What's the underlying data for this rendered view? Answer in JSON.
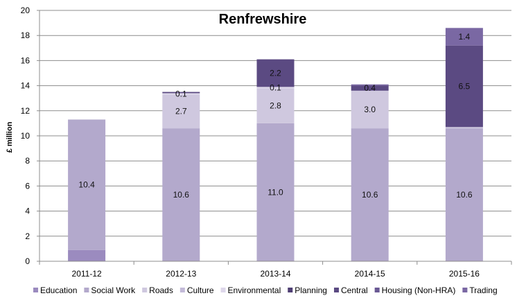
{
  "chart_data": {
    "type": "bar",
    "stacked": true,
    "title": "Renfrewshire",
    "ylabel": "£ million",
    "xlabel": "",
    "ylim": [
      0,
      20
    ],
    "ytick_step": 2,
    "grid": true,
    "legend_position": "bottom",
    "categories": [
      "2011-12",
      "2012-13",
      "2013-14",
      "2014-15",
      "2015-16"
    ],
    "series": [
      {
        "name": "Education",
        "color": "#9b8bbf",
        "values": [
          0.9,
          0,
          0,
          0,
          0
        ],
        "labels": [
          "",
          "",
          "",
          "",
          ""
        ]
      },
      {
        "name": "Social Work",
        "color": "#b3a9cc",
        "values": [
          10.4,
          10.6,
          11.0,
          10.6,
          10.6
        ],
        "labels": [
          "10.4",
          "10.6",
          "11.0",
          "10.6",
          "10.6"
        ]
      },
      {
        "name": "Roads",
        "color": "#cfc8df",
        "values": [
          0,
          2.7,
          2.8,
          3.0,
          0.1
        ],
        "labels": [
          "",
          "2.7",
          "2.8",
          "3.0",
          ""
        ]
      },
      {
        "name": "Culture",
        "color": "#c3bad8",
        "values": [
          0,
          0,
          0,
          0,
          0
        ],
        "labels": [
          "",
          "",
          "",
          "",
          ""
        ]
      },
      {
        "name": "Environmental",
        "color": "#ddd7ea",
        "values": [
          0,
          0.1,
          0.1,
          0,
          0
        ],
        "labels": [
          "",
          "0.1",
          "0.1",
          "",
          ""
        ]
      },
      {
        "name": "Planning",
        "color": "#4f3f74",
        "values": [
          0,
          0,
          0,
          0,
          0
        ],
        "labels": [
          "",
          "",
          "",
          "",
          ""
        ]
      },
      {
        "name": "Central",
        "color": "#5b4a82",
        "values": [
          0,
          0.1,
          2.2,
          0.4,
          6.5
        ],
        "labels": [
          "",
          "",
          "2.2",
          "0.4",
          "6.5"
        ]
      },
      {
        "name": "Housing (Non-HRA)",
        "color": "#6a5994",
        "values": [
          0,
          0,
          0,
          0,
          0
        ],
        "labels": [
          "",
          "",
          "",
          "",
          ""
        ]
      },
      {
        "name": "Trading",
        "color": "#7a68a3",
        "values": [
          0,
          0,
          0,
          0.1,
          1.4
        ],
        "labels": [
          "",
          "",
          "",
          "",
          "1.4"
        ]
      }
    ]
  }
}
